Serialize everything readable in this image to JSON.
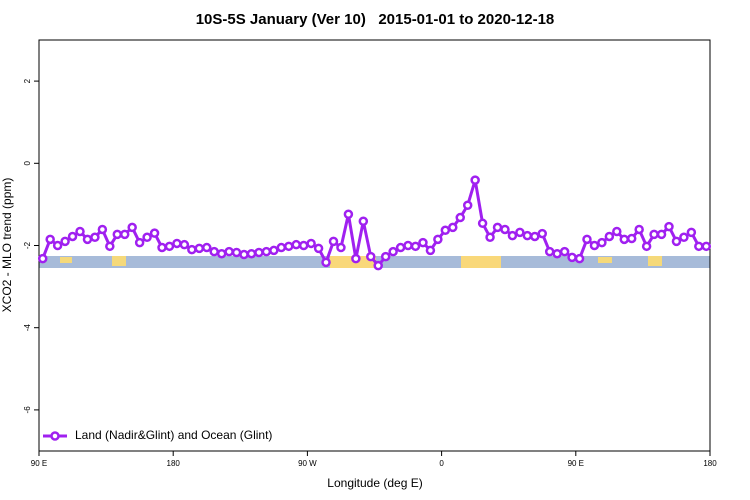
{
  "chart_data": {
    "type": "line",
    "title": "10S-5S January (Ver 10)   2015-01-01 to 2020-12-18",
    "xlabel": "Longitude (deg E)",
    "ylabel": "XCO2 - MLO trend (ppm)",
    "x": [
      92.5,
      97.5,
      102.5,
      107.5,
      112.5,
      117.5,
      122.5,
      127.5,
      132.5,
      137.5,
      142.5,
      147.5,
      152.5,
      157.5,
      162.5,
      167.5,
      172.5,
      177.5,
      182.5,
      187.5,
      192.5,
      197.5,
      202.5,
      207.5,
      212.5,
      217.5,
      222.5,
      227.5,
      232.5,
      237.5,
      242.5,
      247.5,
      252.5,
      257.5,
      262.5,
      267.5,
      272.5,
      277.5,
      282.5,
      287.5,
      292.5,
      297.5,
      302.5,
      307.5,
      312.5,
      317.5,
      322.5,
      327.5,
      332.5,
      337.5,
      342.5,
      347.5,
      352.5,
      357.5,
      362.5,
      367.5,
      372.5,
      377.5,
      382.5,
      387.5,
      392.5,
      397.5,
      402.5,
      407.5,
      412.5,
      417.5,
      422.5,
      427.5,
      432.5,
      437.5,
      442.5,
      447.5,
      452.5,
      457.5,
      462.5,
      467.5,
      472.5,
      477.5,
      482.5,
      487.5,
      492.5,
      497.5,
      502.5,
      507.5,
      512.5,
      517.5,
      522.5,
      527.5,
      532.5,
      537.5
    ],
    "series": [
      {
        "name": "Land (Nadir&Glint) and Ocean (Glint)",
        "color": "#a020f0",
        "values": [
          -2.32,
          -1.85,
          -2.0,
          -1.9,
          -1.78,
          -1.66,
          -1.85,
          -1.8,
          -1.61,
          -2.02,
          -1.73,
          -1.73,
          -1.56,
          -1.93,
          -1.8,
          -1.7,
          -2.05,
          -2.02,
          -1.95,
          -1.98,
          -2.1,
          -2.07,
          -2.05,
          -2.15,
          -2.2,
          -2.15,
          -2.17,
          -2.22,
          -2.2,
          -2.17,
          -2.15,
          -2.12,
          -2.05,
          -2.02,
          -1.98,
          -2.0,
          -1.95,
          -2.07,
          -2.41,
          -1.9,
          -2.05,
          -1.24,
          -2.32,
          -1.41,
          -2.27,
          -2.49,
          -2.27,
          -2.15,
          -2.05,
          -2.0,
          -2.02,
          -1.93,
          -2.12,
          -1.85,
          -1.63,
          -1.56,
          -1.32,
          -1.02,
          -0.41,
          -1.46,
          -1.8,
          -1.56,
          -1.61,
          -1.76,
          -1.68,
          -1.76,
          -1.78,
          -1.71,
          -2.15,
          -2.2,
          -2.15,
          -2.29,
          -2.32,
          -1.85,
          -2.0,
          -1.93,
          -1.78,
          -1.66,
          -1.85,
          -1.83,
          -1.61,
          -2.02,
          -1.73,
          -1.73,
          -1.54,
          -1.9,
          -1.8,
          -1.68,
          -2.02,
          -2.02
        ]
      }
    ],
    "xlim": [
      90,
      540
    ],
    "xticks": [
      {
        "value": 90,
        "label": "90 E"
      },
      180,
      {
        "value": 270,
        "label": "90 W"
      },
      {
        "value": 360,
        "label": "0"
      },
      {
        "value": 450,
        "label": "90 E"
      },
      {
        "value": 540,
        "label": "180"
      }
    ],
    "ylim": [
      -7,
      3
    ],
    "yticks": [
      -6,
      -4,
      -2,
      0,
      2
    ],
    "legend": "bottom-left"
  }
}
